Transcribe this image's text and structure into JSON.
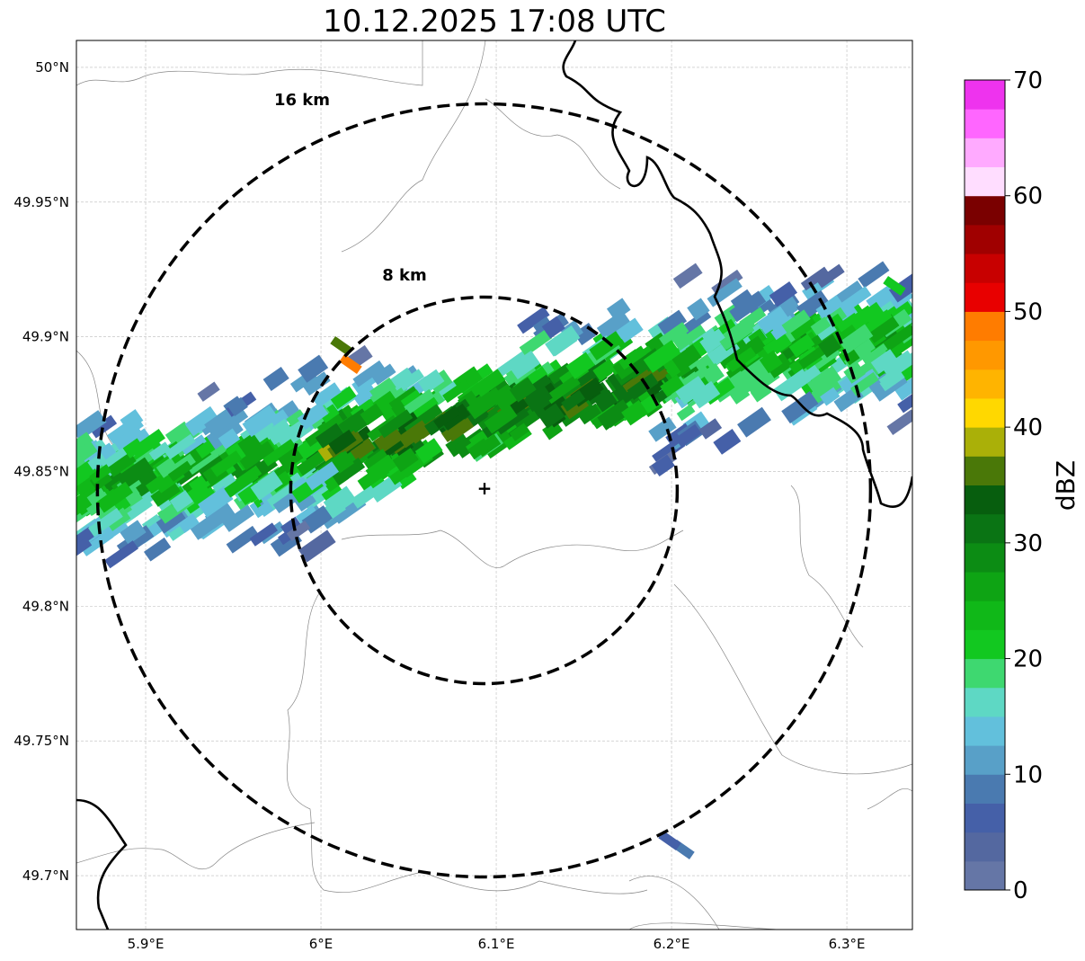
{
  "title": "10.12.2025 17:08 UTC",
  "map": {
    "lon_range": [
      5.8605,
      6.3374
    ],
    "lat_range": [
      49.68,
      50.01
    ],
    "lon_ticks": [
      {
        "v": 5.9,
        "label": "5.9°E"
      },
      {
        "v": 6.0,
        "label": "6°E"
      },
      {
        "v": 6.1,
        "label": "6.1°E"
      },
      {
        "v": 6.2,
        "label": "6.2°E"
      },
      {
        "v": 6.3,
        "label": "6.3°E"
      }
    ],
    "lat_ticks": [
      {
        "v": 50.0,
        "label": "50°N"
      },
      {
        "v": 49.95,
        "label": "49.95°N"
      },
      {
        "v": 49.9,
        "label": "49.9°N"
      },
      {
        "v": 49.85,
        "label": "49.85°N"
      },
      {
        "v": 49.8,
        "label": "49.8°N"
      },
      {
        "v": 49.75,
        "label": "49.75°N"
      },
      {
        "v": 49.7,
        "label": "49.7°N"
      }
    ],
    "radar_site": {
      "lon": 6.093,
      "lat": 49.843
    },
    "rings": [
      {
        "km": 8,
        "label": "8 km"
      },
      {
        "km": 16,
        "label": "16 km"
      }
    ]
  },
  "colorbar": {
    "label": "dBZ",
    "min": 0,
    "max": 70,
    "ticks": [
      "0",
      "10",
      "20",
      "30",
      "40",
      "50",
      "60",
      "70"
    ],
    "colors": [
      "#6576a6",
      "#5468a0",
      "#4560a8",
      "#4a7ab0",
      "#58a0c8",
      "#62c0dc",
      "#5ed8c4",
      "#3ed870",
      "#12c820",
      "#10b818",
      "#0ea414",
      "#0c8c14",
      "#0a7414",
      "#075e0e",
      "#4a7808",
      "#aab008",
      "#ffd800",
      "#ffb400",
      "#ff9800",
      "#ff7c00",
      "#e80000",
      "#c80000",
      "#a00000",
      "#7a0000",
      "#ffddff",
      "#ffaaff",
      "#ff66ff",
      "#ee33ee"
    ]
  }
}
